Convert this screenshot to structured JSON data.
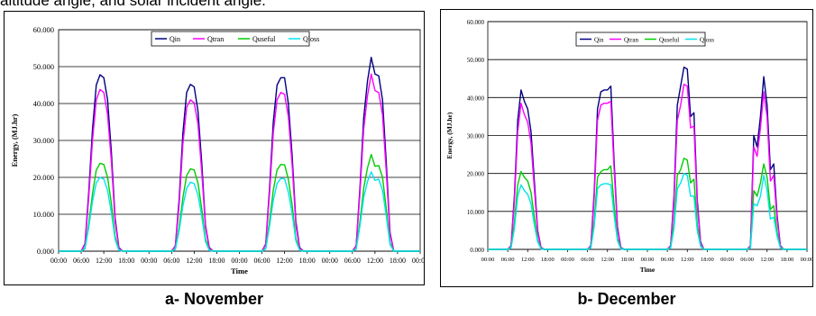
{
  "header_fragment": "altitude angle, and solar incident angle.",
  "chart_data": [
    {
      "type": "line",
      "caption": "a- November",
      "xlabel": "Time",
      "ylabel": "Energy, (MJ.hr)",
      "ylim": [
        0,
        60
      ],
      "ytick_labels": [
        "0.000",
        "10.000",
        "20.000",
        "30.000",
        "40.000",
        "50.000",
        "60.000"
      ],
      "xtick_labels": [
        "00:00",
        "06:00",
        "12:00",
        "18:00",
        "00:00",
        "06:00",
        "12:00",
        "18:00",
        "00:00",
        "06:00",
        "12:00",
        "18:00",
        "00:00",
        "06:00",
        "12:00",
        "18:00",
        "00:00"
      ],
      "x": [
        0,
        1,
        2,
        3,
        4,
        5,
        6,
        7,
        8,
        9,
        10,
        11,
        12,
        13,
        14,
        15,
        16,
        17,
        18,
        19,
        20,
        21,
        22,
        23,
        24,
        25,
        26,
        27,
        28,
        29,
        30,
        31,
        32,
        33,
        34,
        35,
        36,
        37,
        38,
        39,
        40,
        41,
        42,
        43,
        44,
        45,
        46,
        47,
        48,
        49,
        50,
        51,
        52,
        53,
        54,
        55,
        56,
        57,
        58,
        59,
        60,
        61,
        62,
        63,
        64,
        65,
        66,
        67,
        68,
        69,
        70,
        71,
        72,
        73,
        74,
        75,
        76,
        77,
        78,
        79,
        80,
        81,
        82,
        83,
        84,
        85,
        86,
        87,
        88,
        89,
        90,
        91,
        92,
        93,
        94,
        95,
        96
      ],
      "x_unit": "hours",
      "grid": true,
      "legend": "top-center",
      "series": [
        {
          "name": "Qin",
          "color": "#000080",
          "values": [
            0,
            0,
            0,
            0,
            0,
            0,
            0,
            2,
            16,
            33,
            45,
            47.8,
            47,
            41,
            27,
            9,
            1,
            0,
            0,
            0,
            0,
            0,
            0,
            0,
            0,
            0,
            0,
            0,
            0,
            0,
            0,
            1.5,
            14,
            32,
            43,
            45.2,
            44.5,
            38,
            24,
            7,
            1,
            0,
            0,
            0,
            0,
            0,
            0,
            0,
            0,
            0,
            0,
            0,
            0,
            0,
            0,
            2,
            17,
            35,
            45,
            47,
            47,
            40,
            26,
            8,
            1,
            0,
            0,
            0,
            0,
            0,
            0,
            0,
            0,
            0,
            0,
            0,
            0,
            0,
            0,
            1.5,
            17,
            36,
            46,
            52.5,
            48,
            47.5,
            41,
            24,
            5,
            0,
            0,
            0,
            0,
            0,
            0,
            0,
            0
          ]
        },
        {
          "name": "Qtran",
          "color": "#ff00ff",
          "values": [
            0,
            0,
            0,
            0,
            0,
            0,
            0,
            1.8,
            14.5,
            30,
            41,
            43.8,
            43,
            37,
            24.5,
            8,
            0.8,
            0,
            0,
            0,
            0,
            0,
            0,
            0,
            0,
            0,
            0,
            0,
            0,
            0,
            0,
            1.4,
            12.5,
            29,
            39,
            41,
            40.2,
            34.5,
            21.5,
            6.5,
            0.8,
            0,
            0,
            0,
            0,
            0,
            0,
            0,
            0,
            0,
            0,
            0,
            0,
            0,
            0,
            1.8,
            15.5,
            32,
            41,
            43,
            42.5,
            36.5,
            23.5,
            7,
            0.8,
            0,
            0,
            0,
            0,
            0,
            0,
            0,
            0,
            0,
            0,
            0,
            0,
            0,
            0,
            1.4,
            15.5,
            33,
            42,
            48,
            43.5,
            43,
            37,
            21.5,
            4.5,
            0,
            0,
            0,
            0,
            0,
            0,
            0,
            0
          ]
        },
        {
          "name": "Quseful",
          "color": "#00cc00",
          "values": [
            0,
            0,
            0,
            0,
            0,
            0,
            0,
            0.8,
            7.5,
            15.5,
            22,
            23.8,
            23.5,
            20,
            13,
            4,
            0.3,
            0,
            0,
            0,
            0,
            0,
            0,
            0,
            0,
            0,
            0,
            0,
            0,
            0,
            0,
            0.6,
            6.5,
            14.5,
            20.5,
            22.3,
            22,
            18.5,
            11.5,
            3.3,
            0.3,
            0,
            0,
            0,
            0,
            0,
            0,
            0,
            0,
            0,
            0,
            0,
            0,
            0,
            0,
            0.8,
            8,
            16.5,
            22,
            23.5,
            23.4,
            19.5,
            12.5,
            3.5,
            0.3,
            0,
            0,
            0,
            0,
            0,
            0,
            0,
            0,
            0,
            0,
            0,
            0,
            0,
            0,
            0.6,
            8,
            17,
            22.5,
            26.2,
            23,
            23.2,
            20,
            11.5,
            2.2,
            0,
            0,
            0,
            0,
            0,
            0,
            0,
            0
          ]
        },
        {
          "name": "Qloss",
          "color": "#00e5ee",
          "values": [
            0,
            0,
            0,
            0,
            0,
            0,
            0,
            0.6,
            6.5,
            13.5,
            18.5,
            20,
            19.5,
            16.5,
            10.5,
            3.2,
            0.2,
            0,
            0,
            0,
            0,
            0,
            0,
            0,
            0,
            0,
            0,
            0,
            0,
            0,
            0,
            0.5,
            5.5,
            12.3,
            17,
            18.7,
            18.3,
            15.2,
            9.5,
            2.6,
            0.2,
            0,
            0,
            0,
            0,
            0,
            0,
            0,
            0,
            0,
            0,
            0,
            0,
            0,
            0,
            0.6,
            6.8,
            13.8,
            18.3,
            19.7,
            19.6,
            16,
            10.2,
            2.8,
            0.2,
            0,
            0,
            0,
            0,
            0,
            0,
            0,
            0,
            0,
            0,
            0,
            0,
            0,
            0,
            0.5,
            6.8,
            14.5,
            18.8,
            21.5,
            19.2,
            19.5,
            16.5,
            9.5,
            1.8,
            0,
            0,
            0,
            0,
            0,
            0,
            0,
            0
          ]
        }
      ]
    },
    {
      "type": "line",
      "caption": "b- December",
      "xlabel": "Time",
      "ylabel": "Energy, (MJ.hr)",
      "ylim": [
        0,
        60
      ],
      "ytick_labels": [
        "0.000",
        "10.000",
        "20.000",
        "30.000",
        "40.000",
        "50.000",
        "60.000"
      ],
      "xtick_labels": [
        "00:00",
        "06:00",
        "12:00",
        "18:00",
        "00:00",
        "06:00",
        "12:00",
        "18:00",
        "00:00",
        "06:00",
        "12:00",
        "18:00",
        "00:00",
        "06:00",
        "12:00",
        "18:00",
        "00:00"
      ],
      "x": [
        0,
        1,
        2,
        3,
        4,
        5,
        6,
        7,
        8,
        9,
        10,
        11,
        12,
        13,
        14,
        15,
        16,
        17,
        18,
        19,
        20,
        21,
        22,
        23,
        24,
        25,
        26,
        27,
        28,
        29,
        30,
        31,
        32,
        33,
        34,
        35,
        36,
        37,
        38,
        39,
        40,
        41,
        42,
        43,
        44,
        45,
        46,
        47,
        48,
        49,
        50,
        51,
        52,
        53,
        54,
        55,
        56,
        57,
        58,
        59,
        60,
        61,
        62,
        63,
        64,
        65,
        66,
        67,
        68,
        69,
        70,
        71,
        72,
        73,
        74,
        75,
        76,
        77,
        78,
        79,
        80,
        81,
        82,
        83,
        84,
        85,
        86,
        87,
        88,
        89,
        90,
        91,
        92,
        93,
        94,
        95,
        96
      ],
      "x_unit": "hours",
      "grid": true,
      "legend": "top-center",
      "series": [
        {
          "name": "Qin",
          "color": "#000080",
          "values": [
            0,
            0,
            0,
            0,
            0,
            0,
            0,
            1,
            14,
            34,
            42,
            39,
            37,
            31,
            18,
            5,
            0.5,
            0,
            0,
            0,
            0,
            0,
            0,
            0,
            0,
            0,
            0,
            0,
            0,
            0,
            0,
            1,
            15,
            37,
            41.5,
            42,
            42,
            43,
            23,
            6,
            0.5,
            0,
            0,
            0,
            0,
            0,
            0,
            0,
            0,
            0,
            0,
            0,
            0,
            0,
            0,
            1,
            14,
            38,
            43,
            48,
            47.5,
            35,
            36,
            13,
            2,
            0,
            0,
            0,
            0,
            0,
            0,
            0,
            0,
            0,
            0,
            0,
            0,
            0,
            0,
            1,
            30,
            27,
            35,
            45.5,
            38,
            21,
            22.5,
            9,
            1,
            0,
            0,
            0,
            0,
            0,
            0,
            0,
            0
          ]
        },
        {
          "name": "Qtran",
          "color": "#ff00ff",
          "values": [
            0,
            0,
            0,
            0,
            0,
            0,
            0,
            0.9,
            12.5,
            31,
            38.5,
            35.5,
            33.5,
            28,
            16,
            4.5,
            0.4,
            0,
            0,
            0,
            0,
            0,
            0,
            0,
            0,
            0,
            0,
            0,
            0,
            0,
            0,
            0.9,
            13.5,
            34,
            38,
            38.5,
            38.5,
            39,
            21,
            5.5,
            0.4,
            0,
            0,
            0,
            0,
            0,
            0,
            0,
            0,
            0,
            0,
            0,
            0,
            0,
            0,
            0.9,
            12.5,
            34,
            38,
            43.5,
            43,
            32,
            32.5,
            11.5,
            1.8,
            0,
            0,
            0,
            0,
            0,
            0,
            0,
            0,
            0,
            0,
            0,
            0,
            0,
            0,
            0.9,
            27,
            24.5,
            32,
            41.5,
            35,
            18,
            19.5,
            8,
            0.9,
            0,
            0,
            0,
            0,
            0,
            0,
            0,
            0
          ]
        },
        {
          "name": "Quseful",
          "color": "#00cc00",
          "values": [
            0,
            0,
            0,
            0,
            0,
            0,
            0,
            0.5,
            7,
            17,
            20.5,
            19,
            18,
            15,
            8.5,
            2.5,
            0.2,
            0,
            0,
            0,
            0,
            0,
            0,
            0,
            0,
            0,
            0,
            0,
            0,
            0,
            0,
            0.5,
            7.5,
            19,
            20.5,
            21,
            21,
            22,
            11.5,
            3,
            0.2,
            0,
            0,
            0,
            0,
            0,
            0,
            0,
            0,
            0,
            0,
            0,
            0,
            0,
            0,
            0.5,
            7,
            19.5,
            21,
            24,
            23.5,
            17.5,
            18.5,
            6.5,
            1,
            0,
            0,
            0,
            0,
            0,
            0,
            0,
            0,
            0,
            0,
            0,
            0,
            0,
            0,
            0.5,
            15.5,
            14,
            17.5,
            22.5,
            19,
            10.5,
            11.5,
            4.5,
            0.5,
            0,
            0,
            0,
            0,
            0,
            0,
            0,
            0
          ]
        },
        {
          "name": "Qloss",
          "color": "#00e5ee",
          "values": [
            0,
            0,
            0,
            0,
            0,
            0,
            0,
            0.4,
            5.5,
            14,
            17,
            15.5,
            14.5,
            12,
            6.5,
            2,
            0.1,
            0,
            0,
            0,
            0,
            0,
            0,
            0,
            0,
            0,
            0,
            0,
            0,
            0,
            0,
            0.4,
            6,
            16,
            17,
            17.3,
            17.3,
            17,
            9,
            2.3,
            0.1,
            0,
            0,
            0,
            0,
            0,
            0,
            0,
            0,
            0,
            0,
            0,
            0,
            0,
            0,
            0.4,
            5.5,
            16,
            17.5,
            20,
            19.5,
            14,
            14,
            5,
            0.8,
            0,
            0,
            0,
            0,
            0,
            0,
            0,
            0,
            0,
            0,
            0,
            0,
            0,
            0,
            0.4,
            12,
            11.5,
            14,
            19.5,
            15.5,
            8,
            8.5,
            3.5,
            0.4,
            0,
            0,
            0,
            0,
            0,
            0,
            0,
            0
          ]
        }
      ]
    }
  ]
}
